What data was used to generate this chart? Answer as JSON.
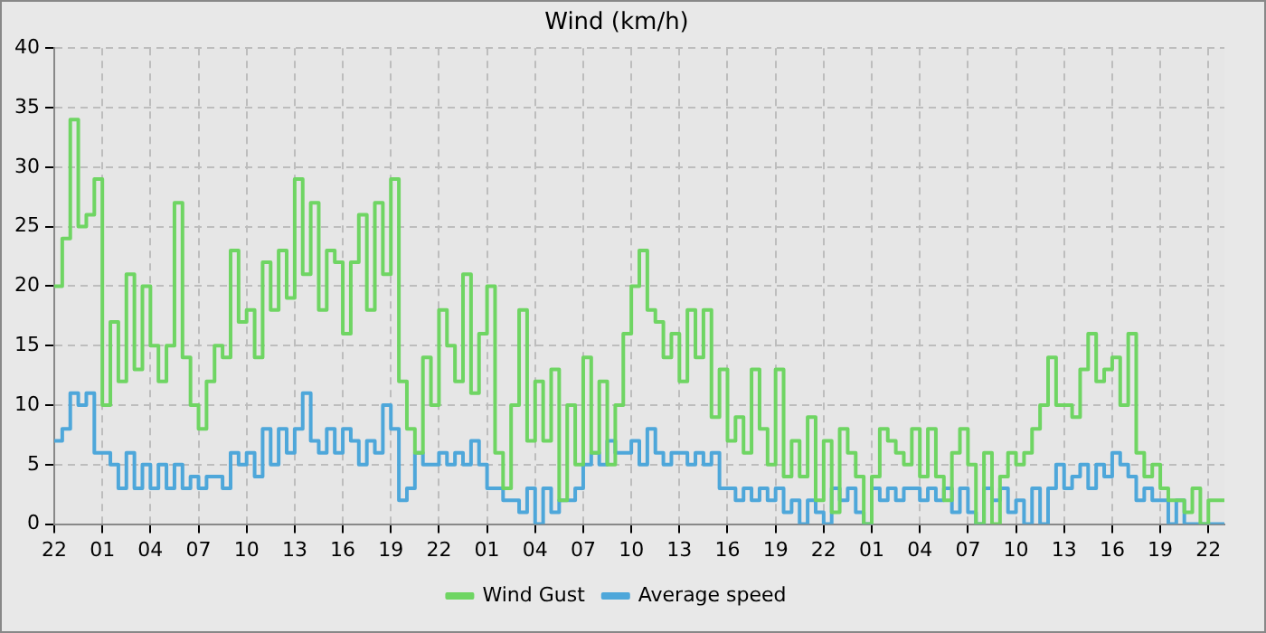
{
  "chart_data": {
    "type": "step",
    "title": "Wind (km/h)",
    "ylim": [
      0,
      40
    ],
    "yticks": [
      0,
      5,
      10,
      15,
      20,
      25,
      30,
      35,
      40
    ],
    "categories": [
      "22",
      null,
      null,
      null,
      null,
      null,
      "01",
      null,
      null,
      null,
      null,
      null,
      "04",
      null,
      null,
      null,
      null,
      null,
      "07",
      null,
      null,
      null,
      null,
      null,
      "10",
      null,
      null,
      null,
      null,
      null,
      "13",
      null,
      null,
      null,
      null,
      null,
      "16",
      null,
      null,
      null,
      null,
      null,
      "19",
      null,
      null,
      null,
      null,
      null,
      "22",
      null,
      null,
      null,
      null,
      null,
      "01",
      null,
      null,
      null,
      null,
      null,
      "04",
      null,
      null,
      null,
      null,
      null,
      "07",
      null,
      null,
      null,
      null,
      null,
      "10",
      null,
      null,
      null,
      null,
      null,
      "13",
      null,
      null,
      null,
      null,
      null,
      "16",
      null,
      null,
      null,
      null,
      null,
      "19",
      null,
      null,
      null,
      null,
      null,
      "22",
      null,
      null,
      null,
      null,
      null,
      "01",
      null,
      null,
      null,
      null,
      null,
      "04",
      null,
      null,
      null,
      null,
      null,
      "07",
      null,
      null,
      null,
      null,
      null,
      "10",
      null,
      null,
      null,
      null,
      null,
      "13",
      null,
      null,
      null,
      null,
      null,
      "16",
      null,
      null,
      null,
      null,
      null,
      "19",
      null,
      null,
      null,
      null,
      null,
      "22",
      null,
      null
    ],
    "grid": true,
    "legend": "bottom",
    "line_style": "solid",
    "series": [
      {
        "name": "Wind Gust",
        "color": "#6fd563",
        "values": [
          20,
          24,
          34,
          25,
          26,
          29,
          10,
          17,
          12,
          21,
          13,
          20,
          15,
          12,
          15,
          27,
          14,
          10,
          8,
          12,
          15,
          14,
          23,
          17,
          18,
          14,
          22,
          18,
          23,
          19,
          29,
          21,
          27,
          18,
          23,
          22,
          16,
          22,
          26,
          18,
          27,
          21,
          29,
          12,
          8,
          6,
          14,
          10,
          18,
          15,
          12,
          21,
          11,
          16,
          20,
          6,
          3,
          10,
          18,
          7,
          12,
          7,
          13,
          2,
          10,
          5,
          14,
          6,
          12,
          5,
          10,
          16,
          20,
          23,
          18,
          17,
          14,
          16,
          12,
          18,
          14,
          18,
          9,
          13,
          7,
          9,
          6,
          13,
          8,
          5,
          13,
          4,
          7,
          4,
          9,
          2,
          7,
          1,
          8,
          6,
          4,
          0,
          4,
          8,
          7,
          6,
          5,
          8,
          4,
          8,
          4,
          2,
          6,
          8,
          5,
          0,
          6,
          0,
          4,
          6,
          5,
          6,
          8,
          10,
          14,
          10,
          10,
          9,
          13,
          16,
          12,
          13,
          14,
          10,
          16,
          6,
          4,
          5,
          3,
          2,
          2,
          1,
          3,
          0,
          2,
          2,
          2
        ]
      },
      {
        "name": "Average speed",
        "color": "#4ea7da",
        "values": [
          7,
          8,
          11,
          10,
          11,
          6,
          6,
          5,
          3,
          6,
          3,
          5,
          3,
          5,
          3,
          5,
          3,
          4,
          3,
          4,
          4,
          3,
          6,
          5,
          6,
          4,
          8,
          5,
          8,
          6,
          8,
          11,
          7,
          6,
          8,
          6,
          8,
          7,
          5,
          7,
          6,
          10,
          8,
          2,
          3,
          6,
          5,
          5,
          6,
          5,
          6,
          5,
          7,
          5,
          3,
          3,
          2,
          2,
          1,
          3,
          0,
          3,
          1,
          2,
          2,
          3,
          5,
          6,
          5,
          7,
          6,
          6,
          7,
          5,
          8,
          6,
          5,
          6,
          6,
          5,
          6,
          5,
          6,
          3,
          3,
          2,
          3,
          2,
          3,
          2,
          3,
          1,
          2,
          0,
          2,
          1,
          0,
          3,
          2,
          3,
          1,
          0,
          3,
          2,
          3,
          2,
          3,
          3,
          2,
          3,
          2,
          3,
          1,
          3,
          1,
          0,
          3,
          2,
          3,
          1,
          2,
          0,
          3,
          0,
          3,
          5,
          3,
          4,
          5,
          3,
          5,
          4,
          6,
          5,
          4,
          2,
          3,
          2,
          2,
          0,
          2,
          0,
          0,
          0,
          0,
          0,
          0
        ]
      }
    ]
  }
}
